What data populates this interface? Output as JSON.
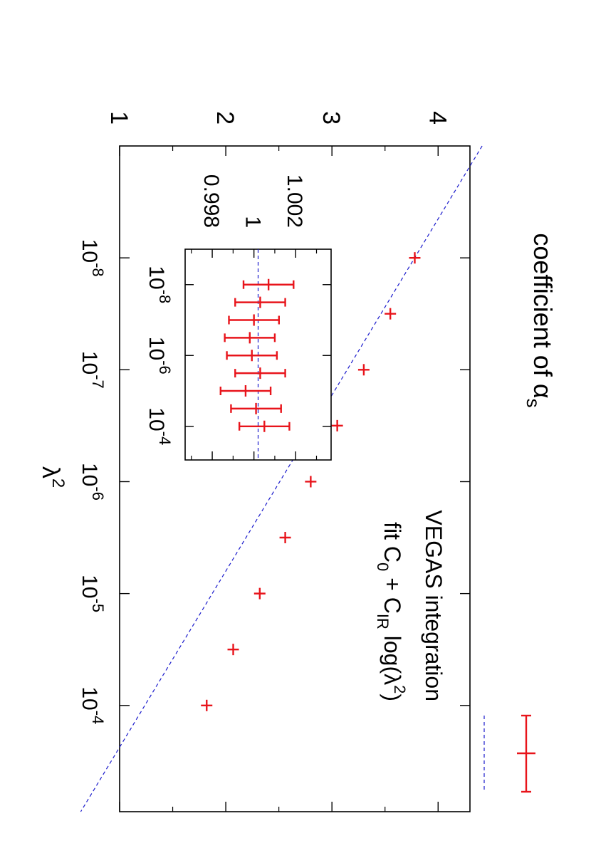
{
  "chart_data": [
    {
      "type": "scatter",
      "ylabel": "coefficient of αs",
      "xlabel": "λ2",
      "xscale": "log",
      "xlim": [
        1e-09,
        0.00089
      ],
      "ylim": [
        1,
        4.3
      ],
      "grid": false,
      "legend_placement": "top-right",
      "y_ticks": [
        {
          "value": 1,
          "label": "1"
        },
        {
          "value": 2,
          "label": "2"
        },
        {
          "value": 3,
          "label": "3"
        },
        {
          "value": 4,
          "label": "4"
        }
      ],
      "y_minor_ticks": [
        1.5,
        2.5,
        3.5
      ],
      "x_ticks": [
        {
          "value": 1e-08,
          "base": "10",
          "exp": "-8"
        },
        {
          "value": 1e-07,
          "base": "10",
          "exp": "-7"
        },
        {
          "value": 1e-06,
          "base": "10",
          "exp": "-6"
        },
        {
          "value": 1e-05,
          "base": "10",
          "exp": "-5"
        },
        {
          "value": 0.0001,
          "base": "10",
          "exp": "-4"
        }
      ],
      "series": [
        {
          "name": "VEGAS integration",
          "kind": "errorbar",
          "color": "#e8141b",
          "x": [
            1e-08,
            3.16e-08,
            1e-07,
            3.16e-07,
            1e-06,
            3.16e-06,
            1e-05,
            3.16e-05,
            0.0001
          ],
          "y": [
            3.78,
            3.55,
            3.3,
            3.05,
            2.8,
            2.56,
            2.32,
            2.07,
            1.82
          ],
          "yerr": 0.006
        },
        {
          "name": "fit C0 + CIR log(λ2)",
          "kind": "line",
          "color": "#1a1acc",
          "style": "dashed",
          "fit": {
            "C0": -1.305,
            "CIR": -0.276
          }
        }
      ],
      "legend": [
        {
          "parts": [
            {
              "text": "VEGAS integration"
            }
          ]
        },
        {
          "parts": [
            {
              "text": "fit C"
            },
            {
              "text": "0",
              "sub": true
            },
            {
              "text": " + C"
            },
            {
              "text": "IR",
              "sub": true
            },
            {
              "text": " log(λ"
            },
            {
              "text": "2",
              "sup": true
            },
            {
              "text": ")"
            }
          ]
        }
      ]
    },
    {
      "type": "scatter",
      "role": "inset",
      "xscale": "log",
      "xlim": [
        1e-09,
        0.00089
      ],
      "ylim": [
        0.9967,
        1.0037
      ],
      "y_ticks": [
        {
          "value": 0.998,
          "label": "0.998"
        },
        {
          "value": 1.0,
          "label": "1"
        },
        {
          "value": 1.002,
          "label": "1.002"
        }
      ],
      "y_minor_ticks": [
        0.997,
        0.999,
        1.001,
        1.003
      ],
      "x_ticks": [
        {
          "value": 1e-08,
          "base": "10",
          "exp": "-8"
        },
        {
          "value": 1e-06,
          "base": "10",
          "exp": "-6"
        },
        {
          "value": 0.0001,
          "base": "10",
          "exp": "-4"
        }
      ],
      "series": [
        {
          "name": "",
          "kind": "errorbar",
          "color": "#e8141b",
          "x": [
            1e-08,
            3.16e-08,
            1e-07,
            3.16e-07,
            1e-06,
            3.16e-06,
            1e-05,
            3.16e-05,
            0.0001
          ],
          "y": [
            1.0007,
            1.0003,
            1.0,
            0.9998,
            0.9999,
            1.0003,
            0.9996,
            1.0001,
            1.0005
          ],
          "yerr": 0.0012
        },
        {
          "name": "",
          "kind": "line",
          "color": "#1a1acc",
          "style": "dashed",
          "constant": 1.0002
        }
      ]
    }
  ]
}
